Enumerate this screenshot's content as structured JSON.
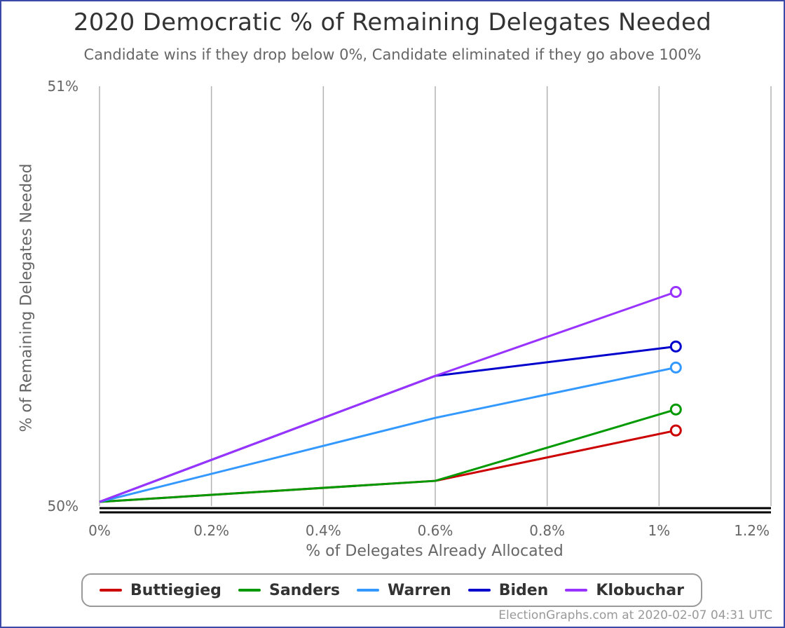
{
  "chart_data": {
    "type": "line",
    "title": "2020 Democratic % of Remaining Delegates Needed",
    "subtitle": "Candidate wins if they drop below 0%, Candidate eliminated if they go above 100%",
    "xlabel": "% of Delegates Already Allocated",
    "ylabel": "% of Remaining Delegates Needed",
    "xlim": [
      0,
      1.2
    ],
    "ylim": [
      50,
      51
    ],
    "x_ticks": [
      {
        "value": 0,
        "label": "0%"
      },
      {
        "value": 0.2,
        "label": "0.2%"
      },
      {
        "value": 0.4,
        "label": "0.4%"
      },
      {
        "value": 0.6,
        "label": "0.6%"
      },
      {
        "value": 0.8,
        "label": "0.8%"
      },
      {
        "value": 1.0,
        "label": "1%"
      },
      {
        "value": 1.2,
        "label": "1.2%"
      }
    ],
    "y_ticks": [
      {
        "value": 50,
        "label": "50%"
      },
      {
        "value": 51,
        "label": "51%"
      }
    ],
    "grid": "vertical",
    "legend_position": "bottom",
    "series": [
      {
        "name": "Buttiegieg",
        "color": "#cc0000",
        "x": [
          0,
          0.6,
          1.03
        ],
        "y": [
          50.01,
          50.06,
          50.18
        ]
      },
      {
        "name": "Sanders",
        "color": "#009900",
        "x": [
          0,
          0.6,
          1.03
        ],
        "y": [
          50.01,
          50.06,
          50.23
        ]
      },
      {
        "name": "Warren",
        "color": "#3399ff",
        "x": [
          0,
          0.6,
          1.03
        ],
        "y": [
          50.01,
          50.21,
          50.33
        ]
      },
      {
        "name": "Biden",
        "color": "#0000cc",
        "x": [
          0,
          0.6,
          1.03
        ],
        "y": [
          50.01,
          50.31,
          50.38
        ]
      },
      {
        "name": "Klobuchar",
        "color": "#9933ff",
        "x": [
          0,
          0.6,
          1.03
        ],
        "y": [
          50.01,
          50.31,
          50.51
        ]
      }
    ]
  },
  "credit": "ElectionGraphs.com at 2020-02-07 04:31 UTC"
}
